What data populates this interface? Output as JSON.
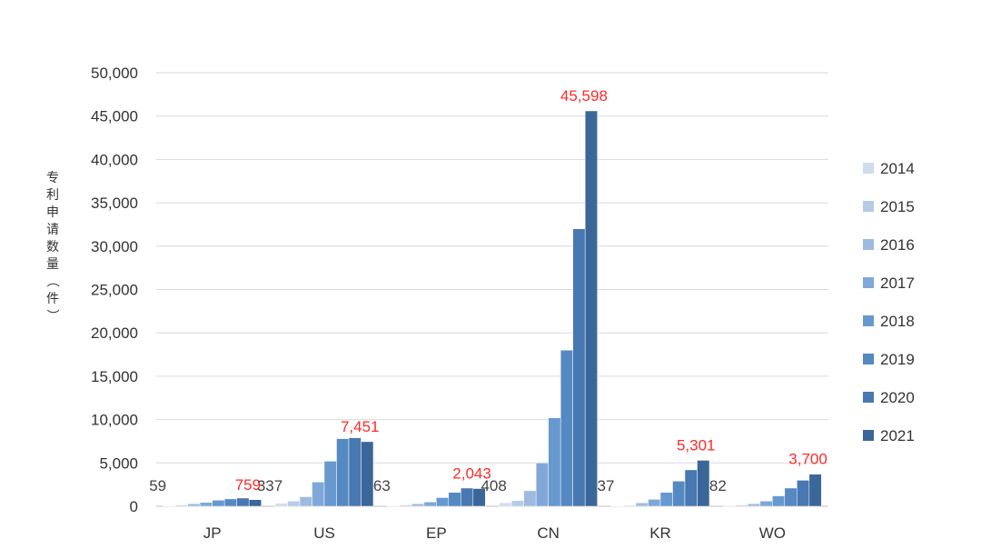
{
  "chart_data": {
    "type": "bar",
    "ylabel": "专利申请数量（件）",
    "ylim": [
      0,
      50000
    ],
    "yticks": [
      "0",
      "5,000",
      "10,000",
      "15,000",
      "20,000",
      "25,000",
      "30,000",
      "35,000",
      "40,000",
      "45,000",
      "50,000"
    ],
    "categories": [
      "JP",
      "US",
      "EP",
      "CN",
      "KR",
      "WO"
    ],
    "grid": true,
    "legend_position": "right",
    "series": [
      {
        "name": "2014",
        "color": "#cfdcee",
        "values": [
          59,
          337,
          63,
          408,
          37,
          82
        ]
      },
      {
        "name": "2015",
        "color": "#b5cbe6",
        "values": [
          150,
          600,
          150,
          650,
          100,
          150
        ]
      },
      {
        "name": "2016",
        "color": "#9ebbdf",
        "values": [
          300,
          1100,
          300,
          1800,
          400,
          300
        ]
      },
      {
        "name": "2017",
        "color": "#7fa8d8",
        "values": [
          450,
          2800,
          500,
          5000,
          800,
          600
        ]
      },
      {
        "name": "2018",
        "color": "#6799cf",
        "values": [
          700,
          5200,
          1000,
          10200,
          1600,
          1200
        ]
      },
      {
        "name": "2019",
        "color": "#5589c2",
        "values": [
          850,
          7800,
          1600,
          18000,
          2900,
          2100
        ]
      },
      {
        "name": "2020",
        "color": "#4878b1",
        "values": [
          950,
          7900,
          2100,
          32000,
          4200,
          3000
        ]
      },
      {
        "name": "2021",
        "color": "#3b6699",
        "values": [
          759,
          7451,
          2043,
          45598,
          5301,
          3700
        ]
      }
    ],
    "data_labels_first": [
      "59",
      "337",
      "63",
      "408",
      "37",
      "82"
    ],
    "data_labels_last": [
      "759",
      "7,451",
      "2,043",
      "45,598",
      "5,301",
      "3,700"
    ],
    "label_color_first": "#444444",
    "label_color_last": "#ff2a2a",
    "grid_color": "#d9d9d9",
    "axis_color": "#bfbfbf"
  }
}
